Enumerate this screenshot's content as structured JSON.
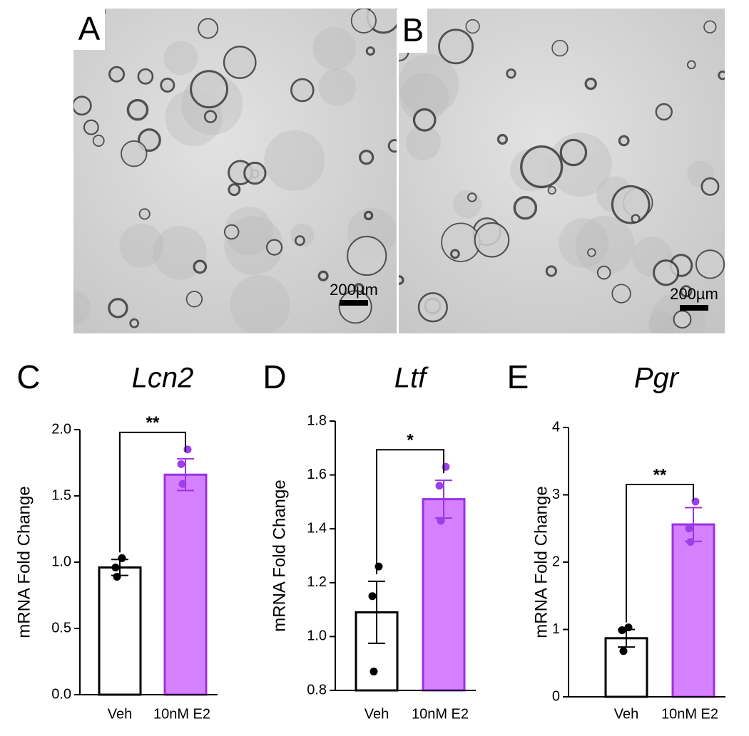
{
  "figure_panels": [
    {
      "label": "A",
      "scale_bar": "200µm"
    },
    {
      "label": "B",
      "scale_bar": "200µm"
    }
  ],
  "chart_data": [
    {
      "type": "bar",
      "panel": "C",
      "title": "Lcn2",
      "y_label": "mRNA Fold Change",
      "categories": [
        "Veh",
        "10nM E2"
      ],
      "values": [
        0.96,
        1.66
      ],
      "errors": [
        0.06,
        0.12
      ],
      "points": [
        [
          1.03,
          0.96,
          0.89
        ],
        [
          1.85,
          1.74,
          1.59
        ]
      ],
      "colors": [
        "#ffffff",
        "#d580ff"
      ],
      "edge_colors": [
        "#000000",
        "#9b30e6"
      ],
      "point_colors": [
        "#000000",
        "#9b40e8"
      ],
      "significance": "**",
      "ylim": [
        0,
        2
      ],
      "yticks": [
        {
          "value": 0,
          "label": "0.0"
        },
        {
          "value": 0.5,
          "label": "0.5"
        },
        {
          "value": 1,
          "label": "1.0"
        },
        {
          "value": 1.5,
          "label": "1.5"
        },
        {
          "value": 2,
          "label": "2.0"
        }
      ]
    },
    {
      "type": "bar",
      "panel": "D",
      "title": "Ltf",
      "y_label": "mRNA Fold Change",
      "categories": [
        "Veh",
        "10nM E2"
      ],
      "values": [
        1.09,
        1.51
      ],
      "errors": [
        0.115,
        0.07
      ],
      "points": [
        [
          1.26,
          1.15,
          0.87
        ],
        [
          1.63,
          1.56,
          1.43
        ]
      ],
      "colors": [
        "#ffffff",
        "#d580ff"
      ],
      "edge_colors": [
        "#000000",
        "#9b30e6"
      ],
      "point_colors": [
        "#000000",
        "#9b40e8"
      ],
      "significance": "*",
      "ylim": [
        0.8,
        1.8
      ],
      "yticks": [
        0.8,
        {
          "value": 1,
          "label": "1.0"
        },
        1.2,
        1.4,
        1.6,
        1.8
      ]
    },
    {
      "type": "bar",
      "panel": "E",
      "title": "Pgr",
      "y_label": "mRNA Fold Change",
      "categories": [
        "Veh",
        "10nM E2"
      ],
      "values": [
        0.87,
        2.56
      ],
      "errors": [
        0.13,
        0.25
      ],
      "points": [
        [
          1.03,
          0.99,
          0.68
        ],
        [
          2.9,
          2.5,
          2.3
        ]
      ],
      "colors": [
        "#ffffff",
        "#d580ff"
      ],
      "edge_colors": [
        "#000000",
        "#9b30e6"
      ],
      "point_colors": [
        "#000000",
        "#9b40e8"
      ],
      "significance": "**",
      "ylim": [
        0,
        4
      ],
      "yticks": [
        0,
        1,
        2,
        3,
        4
      ]
    }
  ]
}
